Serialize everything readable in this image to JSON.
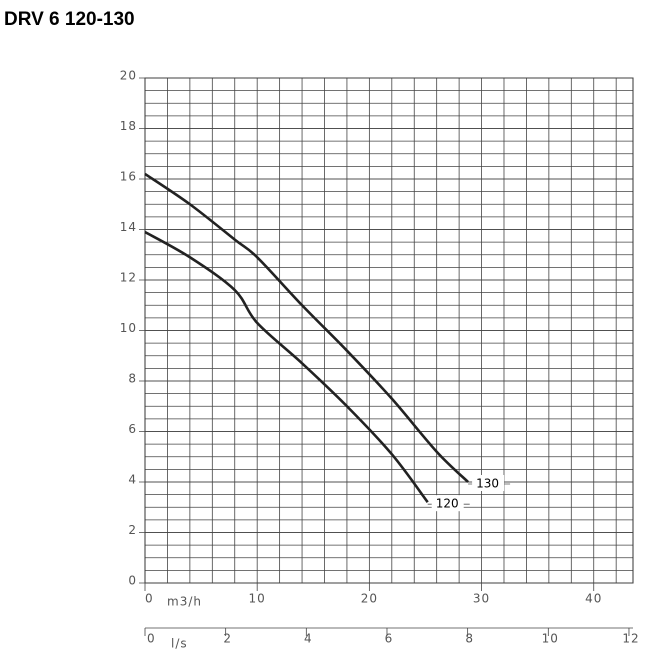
{
  "chart_data": {
    "type": "line",
    "title": "DRV 6 120-130",
    "x_label": "m3/h",
    "x2_label": "l/s",
    "xlim": [
      0,
      43.5
    ],
    "xticks": [
      0,
      10,
      20,
      30,
      40
    ],
    "x2lim": [
      0,
      12.1
    ],
    "x2ticks": [
      0,
      2,
      4,
      6,
      8,
      10,
      12
    ],
    "ylim": [
      0,
      20
    ],
    "yticks": [
      0,
      2,
      4,
      6,
      8,
      10,
      12,
      14,
      16,
      18,
      20
    ],
    "grid": true,
    "series": [
      {
        "name": "130",
        "color": "#222222",
        "x": [
          0,
          4,
          8,
          10,
          14,
          18,
          22,
          26,
          28.8
        ],
        "values": [
          16.2,
          15.0,
          13.6,
          12.9,
          11.0,
          9.2,
          7.3,
          5.2,
          4.0
        ]
      },
      {
        "name": "120",
        "color": "#222222",
        "x": [
          0,
          4,
          8,
          10,
          14,
          18,
          22,
          25.2
        ],
        "values": [
          13.9,
          12.9,
          11.6,
          10.3,
          8.7,
          7.0,
          5.1,
          3.2
        ]
      }
    ]
  }
}
